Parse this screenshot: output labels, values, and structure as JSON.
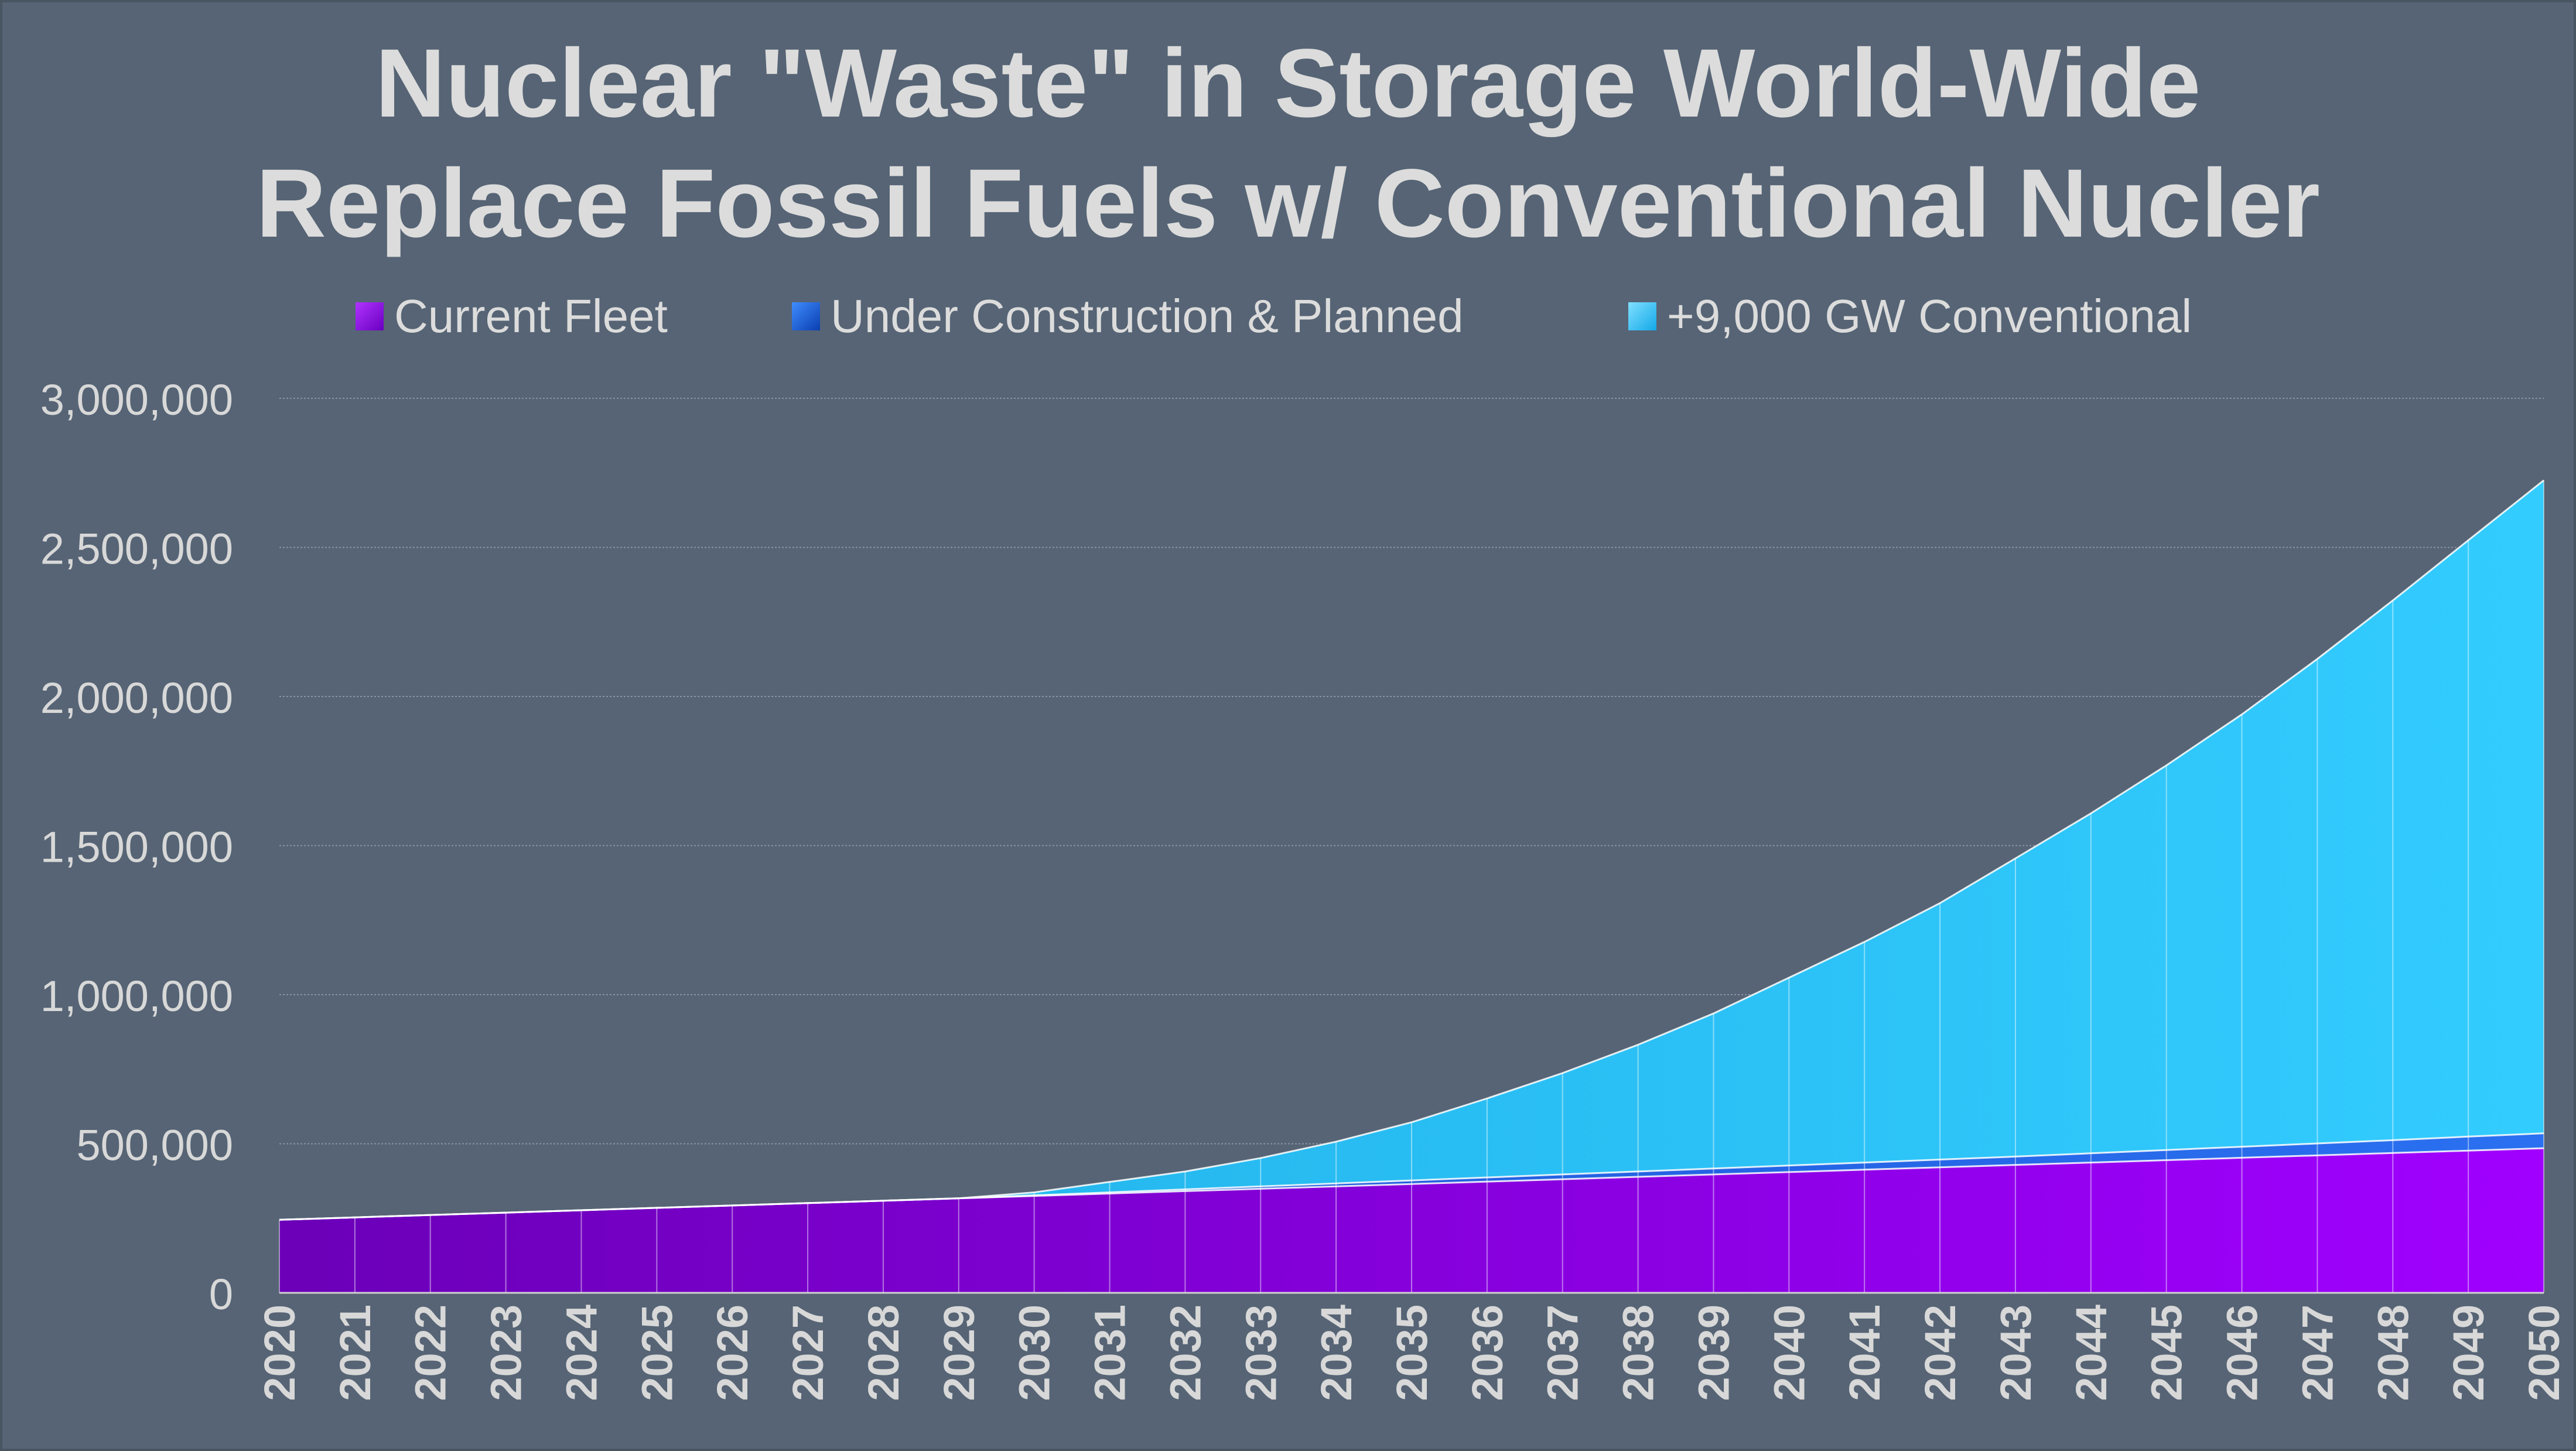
{
  "title": {
    "line1": "Nuclear \"Waste\" in Storage World-Wide",
    "line2": "Replace Fossil Fuels w/ Conventional Nucler"
  },
  "colors": {
    "background": "#566475",
    "current_fleet": "#8b00ee",
    "under_construction": "#1e64e6",
    "conventional": "#2ec6fa",
    "text": "#dcdcdc"
  },
  "chart_data": {
    "type": "area",
    "stacked": true,
    "grid": true,
    "legend_position": "top",
    "x": [
      2020,
      2021,
      2022,
      2023,
      2024,
      2025,
      2026,
      2027,
      2028,
      2029,
      2030,
      2031,
      2032,
      2033,
      2034,
      2035,
      2036,
      2037,
      2038,
      2039,
      2040,
      2041,
      2042,
      2043,
      2044,
      2045,
      2046,
      2047,
      2048,
      2049,
      2050
    ],
    "ylim": [
      0,
      3000000
    ],
    "yticks": [
      0,
      500000,
      1000000,
      1500000,
      2000000,
      2500000,
      3000000
    ],
    "ytick_labels": [
      "0",
      "500,000",
      "1,000,000",
      "1,500,000",
      "2,000,000",
      "2,500,000",
      "3,000,000"
    ],
    "series": [
      {
        "name": "Current Fleet",
        "values": [
          245000,
          253000,
          261000,
          269000,
          277000,
          285000,
          293000,
          301000,
          309000,
          317000,
          325000,
          333000,
          341000,
          349000,
          357000,
          365000,
          373000,
          381000,
          389000,
          397000,
          405000,
          413000,
          421000,
          429000,
          437000,
          445000,
          453000,
          461000,
          469000,
          477000,
          485000
        ]
      },
      {
        "name": "Under Construction & Planned",
        "values": [
          0,
          0,
          0,
          0,
          0,
          0,
          0,
          0,
          0,
          0,
          2000,
          4000,
          6000,
          8000,
          10000,
          12000,
          14000,
          16000,
          18000,
          20000,
          22000,
          24000,
          26000,
          28000,
          31000,
          34000,
          37000,
          40000,
          43000,
          47000,
          50000
        ]
      },
      {
        "name": "+9,000 GW Conventional",
        "values": [
          0,
          0,
          0,
          0,
          0,
          0,
          0,
          0,
          0,
          0,
          10000,
          35000,
          60000,
          95000,
          140000,
          195000,
          265000,
          340000,
          425000,
          520000,
          630000,
          740000,
          860000,
          1000000,
          1140000,
          1290000,
          1450000,
          1625000,
          1810000,
          2000000,
          2190000
        ]
      }
    ]
  }
}
